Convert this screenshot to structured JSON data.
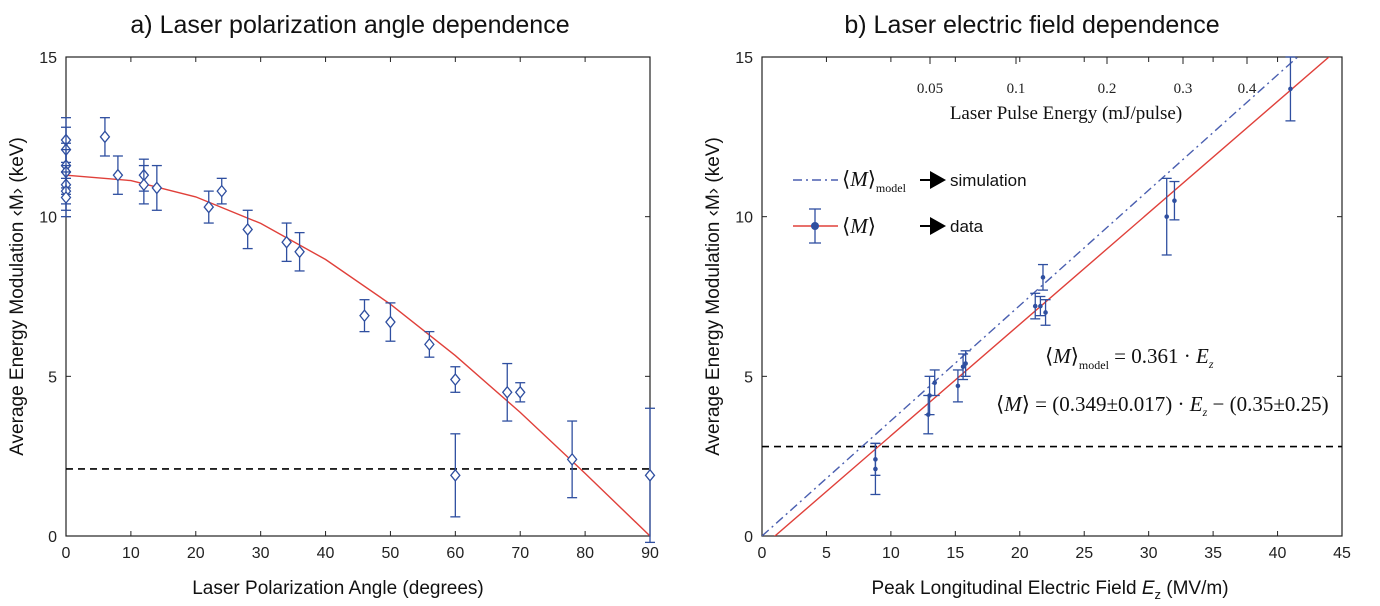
{
  "chart_data": [
    {
      "type": "scatter",
      "title": "a) Laser polarization angle dependence",
      "xlabel": "Laser Polarization Angle (degrees)",
      "ylabel": "Average Energy Modulation ‹M› (keV)",
      "xlim": [
        0,
        90
      ],
      "ylim": [
        0,
        15
      ],
      "xticks": [
        0,
        10,
        20,
        30,
        40,
        50,
        60,
        70,
        80,
        90
      ],
      "yticks": [
        0,
        5,
        10,
        15
      ],
      "grid": false,
      "reference_line_y": 2.1,
      "colors": {
        "data": "#2f4fa0",
        "fit": "#e0403a",
        "reference": "#000000"
      },
      "series": [
        {
          "marker": "diamond",
          "points": [
            {
              "x": 0,
              "y": 12.4,
              "err": 0.7
            },
            {
              "x": 0,
              "y": 12.1,
              "err": 0.7
            },
            {
              "x": 0,
              "y": 11.6,
              "err": 0.7
            },
            {
              "x": 0,
              "y": 11.4,
              "err": 0.7
            },
            {
              "x": 0,
              "y": 11.0,
              "err": 0.6
            },
            {
              "x": 0,
              "y": 10.8,
              "err": 0.6
            },
            {
              "x": 0,
              "y": 10.6,
              "err": 0.6
            },
            {
              "x": 6,
              "y": 12.5,
              "err": 0.6
            },
            {
              "x": 8,
              "y": 11.3,
              "err": 0.6
            },
            {
              "x": 12,
              "y": 11.3,
              "err": 0.5
            },
            {
              "x": 12,
              "y": 11.0,
              "err": 0.6
            },
            {
              "x": 14,
              "y": 10.9,
              "err": 0.7
            },
            {
              "x": 22,
              "y": 10.3,
              "err": 0.5
            },
            {
              "x": 24,
              "y": 10.8,
              "err": 0.4
            },
            {
              "x": 28,
              "y": 9.6,
              "err": 0.6
            },
            {
              "x": 34,
              "y": 9.2,
              "err": 0.6
            },
            {
              "x": 36,
              "y": 8.9,
              "err": 0.6
            },
            {
              "x": 46,
              "y": 6.9,
              "err": 0.5
            },
            {
              "x": 50,
              "y": 6.7,
              "err": 0.6
            },
            {
              "x": 56,
              "y": 6.0,
              "err": 0.4
            },
            {
              "x": 60,
              "y": 4.9,
              "err": 0.4
            },
            {
              "x": 60,
              "y": 1.9,
              "err": 1.3
            },
            {
              "x": 68,
              "y": 4.5,
              "err": 0.9
            },
            {
              "x": 70,
              "y": 4.5,
              "err": 0.3
            },
            {
              "x": 78,
              "y": 2.4,
              "err": 1.2
            },
            {
              "x": 90,
              "y": 1.9,
              "err": 2.1
            }
          ]
        },
        {
          "name_note": "fit curve",
          "line": "solid",
          "curve_points": [
            [
              0,
              11.3
            ],
            [
              10,
              11.13
            ],
            [
              20,
              10.62
            ],
            [
              30,
              9.79
            ],
            [
              40,
              8.66
            ],
            [
              50,
              7.26
            ],
            [
              60,
              5.65
            ],
            [
              70,
              3.87
            ],
            [
              80,
              1.96
            ],
            [
              90,
              0.0
            ]
          ]
        }
      ]
    },
    {
      "type": "scatter",
      "title": "b) Laser electric field dependence",
      "xlabel": "Peak Longitudinal Electric Field",
      "xlabel_symbol": "E",
      "xlabel_subscript": "z",
      "xlabel_units": "(MV/m)",
      "ylabel": "Average Energy Modulation ‹M› (keV)",
      "xlim": [
        0,
        45
      ],
      "ylim": [
        0,
        15
      ],
      "xticks": [
        0,
        5,
        10,
        15,
        20,
        25,
        30,
        35,
        40,
        45
      ],
      "yticks": [
        0,
        5,
        10,
        15
      ],
      "secondary_xaxis": {
        "label": "Laser Pulse Energy (mJ/pulse)",
        "ticks": [
          "0.05",
          "0.1",
          "0.2",
          "0.3",
          "0.4"
        ]
      },
      "grid": false,
      "reference_line_y": 2.8,
      "colors": {
        "data": "#2f4fa0",
        "fit": "#e0403a",
        "model": "#4a5fb0",
        "reference": "#000000"
      },
      "legend": {
        "placement": "upper-left",
        "entries": [
          {
            "symbol": "M",
            "subscript": "model",
            "arrow_label": "simulation"
          },
          {
            "symbol": "M",
            "subscript": "",
            "arrow_label": "data"
          }
        ]
      },
      "annotations": {
        "model_eq_rhs": "= 0.361 · E",
        "model_eq_sub": "z",
        "data_eq_rhs_1": "= (0.349±0.017) · E",
        "data_eq_sub": "z",
        "data_eq_rhs_2": "− (0.35±0.25)",
        "model_subscript": "model",
        "symbol": "M"
      },
      "series": [
        {
          "points": [
            {
              "x": 8.8,
              "y": 2.1,
              "err": 0.8
            },
            {
              "x": 8.8,
              "y": 2.4,
              "err": 0.5
            },
            {
              "x": 12.9,
              "y": 3.8,
              "err": 0.6
            },
            {
              "x": 13.0,
              "y": 4.4,
              "err": 0.6
            },
            {
              "x": 13.4,
              "y": 4.8,
              "err": 0.4
            },
            {
              "x": 15.2,
              "y": 4.7,
              "err": 0.5
            },
            {
              "x": 15.6,
              "y": 5.3,
              "err": 0.4
            },
            {
              "x": 15.8,
              "y": 5.4,
              "err": 0.4
            },
            {
              "x": 21.2,
              "y": 7.2,
              "err": 0.4
            },
            {
              "x": 21.6,
              "y": 7.2,
              "err": 0.3
            },
            {
              "x": 21.8,
              "y": 8.1,
              "err": 0.4
            },
            {
              "x": 22.0,
              "y": 7.0,
              "err": 0.4
            },
            {
              "x": 31.4,
              "y": 10.0,
              "err": 1.2
            },
            {
              "x": 32.0,
              "y": 10.5,
              "err": 0.6
            },
            {
              "x": 41.0,
              "y": 14.0,
              "err": 1.0
            }
          ]
        },
        {
          "line": "solid",
          "slope": 0.349,
          "intercept": -0.35
        },
        {
          "line": "dash-dot",
          "slope": 0.361,
          "intercept": 0
        }
      ]
    }
  ]
}
